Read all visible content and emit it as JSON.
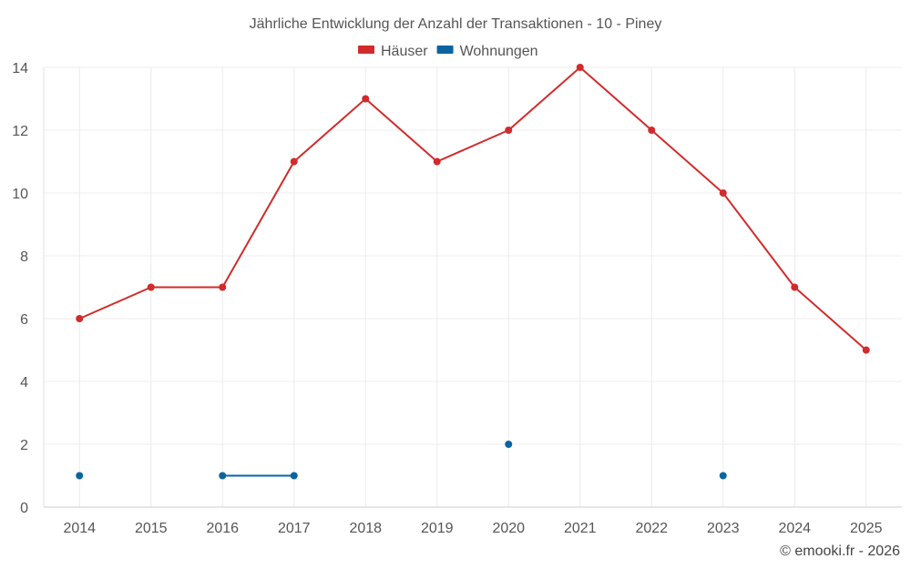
{
  "chart_data": {
    "type": "line",
    "title": "Jährliche Entwicklung der Anzahl der Transaktionen - 10 - Piney",
    "xlabel": "",
    "ylabel": "",
    "categories": [
      "2014",
      "2015",
      "2016",
      "2017",
      "2018",
      "2019",
      "2020",
      "2021",
      "2022",
      "2023",
      "2024",
      "2025"
    ],
    "ylim": [
      0,
      14
    ],
    "yticks": [
      0,
      2,
      4,
      6,
      8,
      10,
      12,
      14
    ],
    "grid": true,
    "legend_position": "top-center",
    "series": [
      {
        "name": "Häuser",
        "color": "#d22b2b",
        "values": [
          6,
          7,
          7,
          11,
          13,
          11,
          12,
          14,
          12,
          10,
          7,
          5
        ]
      },
      {
        "name": "Wohnungen",
        "color": "#0a64a0",
        "values": [
          1,
          null,
          1,
          1,
          null,
          null,
          2,
          null,
          null,
          1,
          null,
          null
        ]
      }
    ]
  },
  "footer": "© emooki.fr - 2026"
}
